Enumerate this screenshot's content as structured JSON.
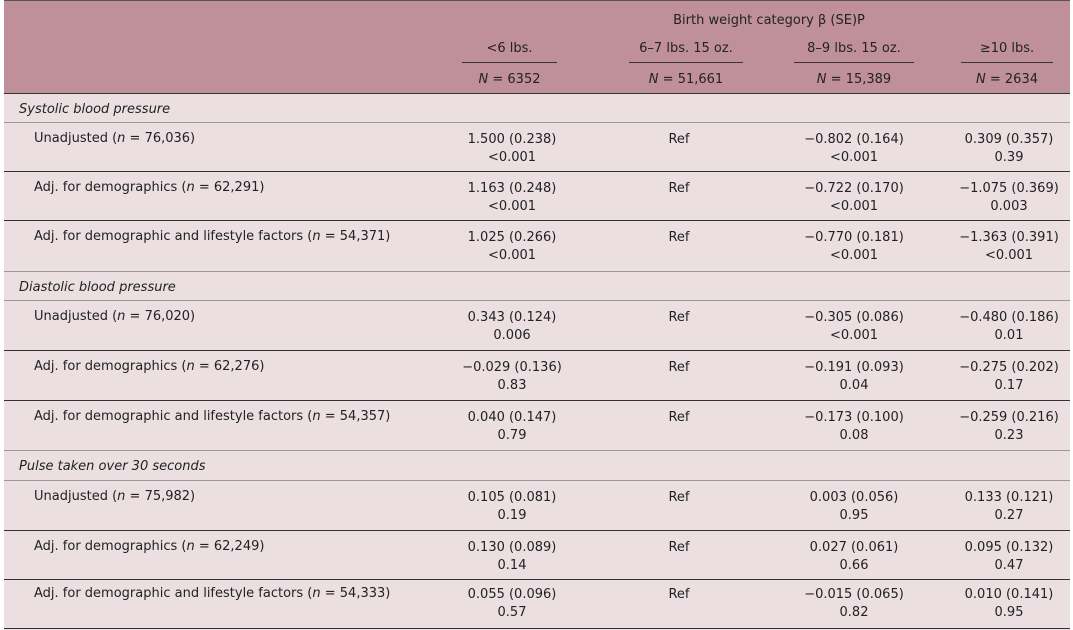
{
  "header": {
    "title": "Birth weight category β (SE)P",
    "columns": [
      {
        "label": "<6 lbs.",
        "n_prefix": "N",
        "n_value": "= 6352"
      },
      {
        "label": "6–7 lbs. 15 oz.",
        "n_prefix": "N",
        "n_value": "= 51,661"
      },
      {
        "label": "8–9 lbs. 15 oz.",
        "n_prefix": "N",
        "n_value": "= 15,389"
      },
      {
        "label": "≥10 lbs.",
        "n_prefix": "N",
        "n_value": "= 2634"
      }
    ]
  },
  "sections": [
    {
      "title": "Systolic blood pressure",
      "rows": [
        {
          "label_pre": "Unadjusted (",
          "n": "n",
          "label_post": " = 76,036)",
          "cells": [
            [
              "1.500 (0.238)",
              "<0.001"
            ],
            [
              "Ref",
              ""
            ],
            [
              "−0.802 (0.164)",
              "<0.001"
            ],
            [
              "0.309 (0.357)",
              "0.39"
            ]
          ]
        },
        {
          "label_pre": "Adj. for demographics (",
          "n": "n",
          "label_post": " = 62,291)",
          "cells": [
            [
              "1.163 (0.248)",
              "<0.001"
            ],
            [
              "Ref",
              ""
            ],
            [
              "−0.722 (0.170)",
              "<0.001"
            ],
            [
              "−1.075 (0.369)",
              "0.003"
            ]
          ]
        },
        {
          "label_pre": "Adj. for demographic and lifestyle factors (",
          "n": "n",
          "label_post": " = 54,371)",
          "cells": [
            [
              "1.025 (0.266)",
              "<0.001"
            ],
            [
              "Ref",
              ""
            ],
            [
              "−0.770 (0.181)",
              "<0.001"
            ],
            [
              "−1.363 (0.391)",
              "<0.001"
            ]
          ]
        }
      ]
    },
    {
      "title": "Diastolic blood pressure",
      "rows": [
        {
          "label_pre": "Unadjusted (",
          "n": "n",
          "label_post": " = 76,020)",
          "cells": [
            [
              "0.343 (0.124)",
              "0.006"
            ],
            [
              "Ref",
              ""
            ],
            [
              "−0.305 (0.086)",
              "<0.001"
            ],
            [
              "−0.480 (0.186)",
              "0.01"
            ]
          ]
        },
        {
          "label_pre": "Adj. for demographics (",
          "n": "n",
          "label_post": " = 62,276)",
          "cells": [
            [
              "−0.029 (0.136)",
              "0.83"
            ],
            [
              "Ref",
              ""
            ],
            [
              "−0.191 (0.093)",
              "0.04"
            ],
            [
              "−0.275 (0.202)",
              "0.17"
            ]
          ]
        },
        {
          "label_pre": "Adj. for demographic and lifestyle factors (",
          "n": "n",
          "label_post": " = 54,357)",
          "cells": [
            [
              "0.040 (0.147)",
              "0.79"
            ],
            [
              "Ref",
              ""
            ],
            [
              "−0.173 (0.100)",
              "0.08"
            ],
            [
              "−0.259 (0.216)",
              "0.23"
            ]
          ]
        }
      ]
    },
    {
      "title": "Pulse taken over 30 seconds",
      "rows": [
        {
          "label_pre": "Unadjusted (",
          "n": "n",
          "label_post": " = 75,982)",
          "cells": [
            [
              "0.105 (0.081)",
              "0.19"
            ],
            [
              "Ref",
              ""
            ],
            [
              "0.003 (0.056)",
              "0.95"
            ],
            [
              "0.133 (0.121)",
              "0.27"
            ]
          ]
        },
        {
          "label_pre": "Adj. for demographics (",
          "n": "n",
          "label_post": " = 62,249)",
          "cells": [
            [
              "0.130 (0.089)",
              "0.14"
            ],
            [
              "Ref",
              ""
            ],
            [
              "0.027 (0.061)",
              "0.66"
            ],
            [
              "0.095 (0.132)",
              "0.47"
            ]
          ]
        },
        {
          "label_pre": "Adj. for demographic and lifestyle factors (",
          "n": "n",
          "label_post": " = 54,333)",
          "cells": [
            [
              "0.055 (0.096)",
              "0.57"
            ],
            [
              "Ref",
              ""
            ],
            [
              "−0.015 (0.065)",
              "0.82"
            ],
            [
              "0.010 (0.141)",
              "0.95"
            ]
          ]
        }
      ]
    }
  ]
}
